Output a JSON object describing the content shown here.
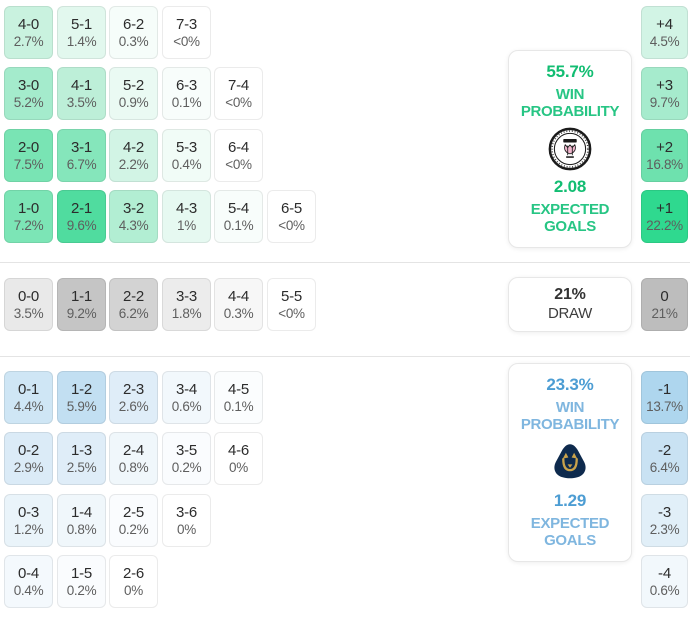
{
  "chart_data": {
    "type": "heatmap",
    "title": "Correct score probability matrix with win / draw probabilities",
    "legend_position": "right",
    "sections": [
      {
        "id": "home-win",
        "accent": "#2fd98f",
        "panel": {
          "probability": "55.7%",
          "probability_label_line1": "WIN",
          "probability_label_line2": "PROBABILITY",
          "expected_goals": "2.08",
          "expected_goals_label_line1": "EXPECTED",
          "expected_goals_label_line2": "GOALS",
          "logo_icon": "inter-miami-crest-icon",
          "value_color": "#12bd72",
          "label_color": "#27c584"
        },
        "rows": [
          [
            {
              "label": "4-0",
              "pct": "2.7%",
              "bg": "#c9f2df"
            },
            {
              "label": "5-1",
              "pct": "1.4%",
              "bg": "#e2f8ee"
            },
            {
              "label": "6-2",
              "pct": "0.3%",
              "bg": "#f6fdfa"
            },
            {
              "label": "7-3",
              "pct": "<0%",
              "bg": "#ffffff"
            }
          ],
          [
            {
              "label": "3-0",
              "pct": "5.2%",
              "bg": "#a4ebcc"
            },
            {
              "label": "4-1",
              "pct": "3.5%",
              "bg": "#bdefd8"
            },
            {
              "label": "5-2",
              "pct": "0.9%",
              "bg": "#eafaf3"
            },
            {
              "label": "6-3",
              "pct": "0.1%",
              "bg": "#f8fdfb"
            },
            {
              "label": "7-4",
              "pct": "<0%",
              "bg": "#ffffff"
            }
          ],
          [
            {
              "label": "2-0",
              "pct": "7.5%",
              "bg": "#79e4b4"
            },
            {
              "label": "3-1",
              "pct": "6.7%",
              "bg": "#85e6bb"
            },
            {
              "label": "4-2",
              "pct": "2.2%",
              "bg": "#d2f4e5"
            },
            {
              "label": "5-3",
              "pct": "0.4%",
              "bg": "#f1fcf7"
            },
            {
              "label": "6-4",
              "pct": "<0%",
              "bg": "#ffffff"
            }
          ],
          [
            {
              "label": "1-0",
              "pct": "7.2%",
              "bg": "#7ce5b6"
            },
            {
              "label": "2-1",
              "pct": "9.6%",
              "bg": "#50dc9f"
            },
            {
              "label": "3-2",
              "pct": "4.3%",
              "bg": "#b2eed3"
            },
            {
              "label": "4-3",
              "pct": "1%",
              "bg": "#e6f9f1"
            },
            {
              "label": "5-4",
              "pct": "0.1%",
              "bg": "#f8fdfb"
            },
            {
              "label": "6-5",
              "pct": "<0%",
              "bg": "#ffffff"
            }
          ]
        ],
        "margins": [
          {
            "label": "+4",
            "pct": "4.5%",
            "bg": "#d2f4e5"
          },
          {
            "label": "+3",
            "pct": "9.7%",
            "bg": "#a6ebcd"
          },
          {
            "label": "+2",
            "pct": "16.8%",
            "bg": "#6ee1ae"
          },
          {
            "label": "+1",
            "pct": "22.2%",
            "bg": "#2fd98f"
          }
        ]
      },
      {
        "id": "draw",
        "accent": "#bdbdbd",
        "panel": {
          "probability": "21%",
          "label": "DRAW",
          "value_color": "#333333",
          "label_color": "#3d3d3d"
        },
        "rows": [
          [
            {
              "label": "0-0",
              "pct": "3.5%",
              "bg": "#e9e9e9"
            },
            {
              "label": "1-1",
              "pct": "9.2%",
              "bg": "#c5c5c5"
            },
            {
              "label": "2-2",
              "pct": "6.2%",
              "bg": "#d3d3d3"
            },
            {
              "label": "3-3",
              "pct": "1.8%",
              "bg": "#ececec"
            },
            {
              "label": "4-4",
              "pct": "0.3%",
              "bg": "#f7f7f7"
            },
            {
              "label": "5-5",
              "pct": "<0%",
              "bg": "#ffffff"
            }
          ]
        ],
        "margins": [
          {
            "label": "0",
            "pct": "21%",
            "bg": "#bdbdbd"
          }
        ]
      },
      {
        "id": "away-win",
        "accent": "#aed6ee",
        "panel": {
          "probability": "23.3%",
          "probability_label_line1": "WIN",
          "probability_label_line2": "PROBABILITY",
          "expected_goals": "1.29",
          "expected_goals_label_line1": "EXPECTED",
          "expected_goals_label_line2": "GOALS",
          "logo_icon": "pumas-unam-crest-icon",
          "value_color": "#4d9dd3",
          "label_color": "#7fb6df"
        },
        "rows": [
          [
            {
              "label": "0-1",
              "pct": "4.4%",
              "bg": "#cfe6f5"
            },
            {
              "label": "1-2",
              "pct": "5.9%",
              "bg": "#c2dff2"
            },
            {
              "label": "2-3",
              "pct": "2.6%",
              "bg": "#dfedf8"
            },
            {
              "label": "3-4",
              "pct": "0.6%",
              "bg": "#f2f8fc"
            },
            {
              "label": "4-5",
              "pct": "0.1%",
              "bg": "#fbfdfe"
            }
          ],
          [
            {
              "label": "0-2",
              "pct": "2.9%",
              "bg": "#dbebf7"
            },
            {
              "label": "1-3",
              "pct": "2.5%",
              "bg": "#dfedf8"
            },
            {
              "label": "2-4",
              "pct": "0.8%",
              "bg": "#f0f7fb"
            },
            {
              "label": "3-5",
              "pct": "0.2%",
              "bg": "#fafcfe"
            },
            {
              "label": "4-6",
              "pct": "0%",
              "bg": "#ffffff"
            }
          ],
          [
            {
              "label": "0-3",
              "pct": "1.2%",
              "bg": "#eaf4fa"
            },
            {
              "label": "1-4",
              "pct": "0.8%",
              "bg": "#f0f7fb"
            },
            {
              "label": "2-5",
              "pct": "0.2%",
              "bg": "#fafcfe"
            },
            {
              "label": "3-6",
              "pct": "0%",
              "bg": "#ffffff"
            }
          ],
          [
            {
              "label": "0-4",
              "pct": "0.4%",
              "bg": "#f4f9fd"
            },
            {
              "label": "1-5",
              "pct": "0.2%",
              "bg": "#fafcfe"
            },
            {
              "label": "2-6",
              "pct": "0%",
              "bg": "#ffffff"
            }
          ]
        ],
        "margins": [
          {
            "label": "-1",
            "pct": "13.7%",
            "bg": "#aed6ee"
          },
          {
            "label": "-2",
            "pct": "6.4%",
            "bg": "#c9e2f3"
          },
          {
            "label": "-3",
            "pct": "2.3%",
            "bg": "#e1eff8"
          },
          {
            "label": "-4",
            "pct": "0.6%",
            "bg": "#f2f8fc"
          }
        ]
      }
    ]
  }
}
